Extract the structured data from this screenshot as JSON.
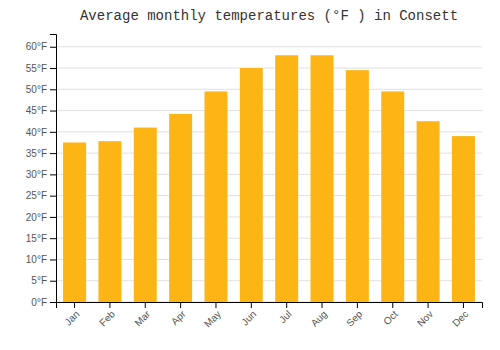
{
  "chart_data": {
    "type": "bar",
    "title": "Average monthly temperatures (°F ) in Consett",
    "categories": [
      "Jan",
      "Feb",
      "Mar",
      "Apr",
      "May",
      "Jun",
      "Jul",
      "Aug",
      "Sep",
      "Oct",
      "Nov",
      "Dec"
    ],
    "values": [
      37.5,
      37.8,
      41.0,
      44.2,
      49.5,
      55.0,
      58.0,
      58.0,
      54.5,
      49.5,
      42.5,
      39.0
    ],
    "color": "#FDB515",
    "ylim": [
      0,
      63
    ],
    "yticks": [
      {
        "value": 0,
        "label": "0°F"
      },
      {
        "value": 5,
        "label": "5°F"
      },
      {
        "value": 10,
        "label": "10°F"
      },
      {
        "value": 15,
        "label": "15°F"
      },
      {
        "value": 20,
        "label": "20°F"
      },
      {
        "value": 25,
        "label": "25°F"
      },
      {
        "value": 30,
        "label": "30°F"
      },
      {
        "value": 35,
        "label": "35°F"
      },
      {
        "value": 40,
        "label": "40°F"
      },
      {
        "value": 45,
        "label": "45°F"
      },
      {
        "value": 50,
        "label": "50°F"
      },
      {
        "value": 55,
        "label": "55°F"
      },
      {
        "value": 60,
        "label": "60°F"
      }
    ],
    "grid": true
  }
}
